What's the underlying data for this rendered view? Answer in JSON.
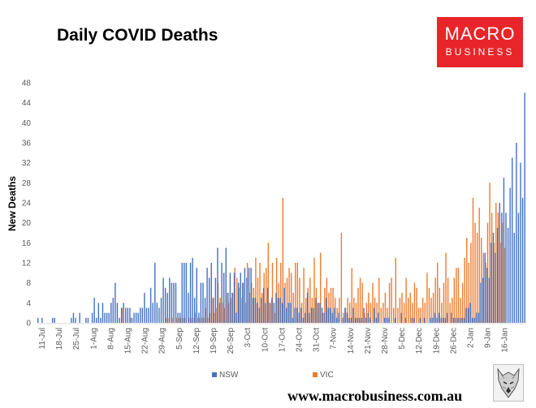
{
  "title": "Daily COVID Deaths",
  "logo": {
    "line1": "MACRO",
    "line2": "BUSINESS",
    "color": "#e8252a"
  },
  "footer": "www.macrobusiness.com.au",
  "chart_data": {
    "type": "bar",
    "title": "Daily COVID Deaths",
    "ylabel": "New Deaths",
    "ylim": [
      0,
      48
    ],
    "yticks": [
      0,
      4,
      8,
      12,
      16,
      20,
      24,
      28,
      32,
      36,
      40,
      44,
      48
    ],
    "x_tick_labels": [
      "11-Jul",
      "18-Jul",
      "25-Jul",
      "1-Aug",
      "8-Aug",
      "15-Aug",
      "22-Aug",
      "29-Aug",
      "5-Sep",
      "12-Sep",
      "19-Sep",
      "26-Sep",
      "3-Oct",
      "10-Oct",
      "17-Oct",
      "24-Oct",
      "31-Oct",
      "7-Nov",
      "14-Nov",
      "21-Nov",
      "28-Nov",
      "5-Dec",
      "12-Dec",
      "19-Dec",
      "26-Dec",
      "2-Jan",
      "9-Jan",
      "16-Jan"
    ],
    "grid": false,
    "legend_position": "bottom",
    "series": [
      {
        "name": "NSW",
        "color": "#4472c4",
        "values": [
          1,
          0,
          1,
          0,
          0,
          0,
          0,
          1,
          1,
          0,
          0,
          0,
          0,
          0,
          0,
          0,
          1,
          2,
          1,
          0,
          2,
          0,
          0,
          1,
          1,
          0,
          2,
          5,
          1,
          4,
          1,
          4,
          2,
          2,
          2,
          4,
          5,
          8,
          4,
          1,
          3,
          4,
          3,
          3,
          3,
          1,
          2,
          2,
          2,
          3,
          3,
          6,
          3,
          3,
          7,
          4,
          12,
          4,
          3,
          5,
          9,
          7,
          6,
          9,
          8,
          8,
          8,
          2,
          2,
          12,
          12,
          12,
          6,
          12,
          13,
          5,
          11,
          2,
          8,
          8,
          5,
          11,
          9,
          12,
          5,
          9,
          15,
          4,
          12,
          10,
          15,
          6,
          10,
          6,
          10,
          2,
          8,
          10,
          8,
          11,
          9,
          11,
          11,
          5,
          5,
          4,
          3,
          5,
          7,
          4,
          7,
          4,
          5,
          4,
          6,
          5,
          5,
          4,
          7,
          3,
          4,
          4,
          1,
          3,
          3,
          2,
          3,
          1,
          2,
          6,
          2,
          3,
          3,
          5,
          4,
          4,
          3,
          2,
          5,
          3,
          3,
          2,
          3,
          1,
          2,
          0,
          1,
          3,
          2,
          1,
          1,
          3,
          1,
          1,
          1,
          1,
          3,
          1,
          2,
          1,
          0,
          3,
          1,
          2,
          0,
          0,
          1,
          1,
          1,
          0,
          0,
          1,
          0,
          0,
          2,
          0,
          1,
          0,
          0,
          1,
          1,
          0,
          0,
          1,
          0,
          1,
          0,
          0,
          1,
          1,
          2,
          1,
          2,
          1,
          1,
          1,
          2,
          0,
          2,
          1,
          1,
          1,
          1,
          1,
          1,
          3,
          3,
          4,
          1,
          1,
          2,
          2,
          8,
          9,
          14,
          11,
          9,
          16,
          18,
          14,
          19,
          24,
          22,
          29,
          22,
          19,
          27,
          33,
          18,
          36,
          22,
          32,
          25,
          46
        ],
        "dim": [
          1,
          1,
          1,
          1,
          1,
          1,
          1,
          1,
          1,
          1,
          1,
          1,
          1,
          1,
          1,
          1,
          1,
          1,
          1,
          1,
          1,
          1,
          1,
          1,
          1,
          1,
          1,
          1,
          1,
          1,
          1,
          1,
          1,
          1,
          1,
          1,
          1,
          1,
          1,
          1,
          1,
          1,
          1,
          1,
          1,
          1,
          1,
          1,
          1,
          1,
          1,
          1,
          1,
          1,
          1,
          1,
          1,
          1,
          1,
          1,
          1,
          1,
          1,
          1,
          1,
          1,
          1,
          1,
          1,
          1,
          1,
          1,
          1,
          1,
          1,
          1,
          1,
          1,
          1,
          1,
          1,
          1,
          1,
          1,
          1,
          1,
          1,
          1,
          1,
          1,
          1,
          1,
          1,
          1,
          1,
          1,
          1,
          1,
          1,
          1,
          1,
          1,
          1,
          1,
          1,
          1,
          1,
          1,
          1,
          1,
          1,
          1,
          1,
          1,
          1,
          1,
          1,
          1,
          1,
          1,
          1,
          1,
          1,
          1,
          1,
          1,
          1,
          1,
          1,
          1,
          1,
          1,
          1,
          1,
          1,
          1,
          1,
          1,
          1,
          1,
          1,
          1,
          1,
          1,
          1,
          1,
          1,
          1,
          1,
          1,
          1,
          1,
          1,
          1,
          1,
          1,
          1,
          1,
          1,
          1,
          1,
          1,
          1,
          1,
          1,
          1,
          1,
          1,
          1,
          1,
          1,
          1,
          1,
          1,
          1,
          1,
          1,
          1,
          1,
          1,
          1,
          1,
          1,
          1,
          1,
          1,
          1,
          1,
          1,
          1,
          1,
          1,
          1,
          1,
          1,
          1,
          1,
          1,
          1,
          1,
          1,
          1,
          1,
          1,
          1,
          1,
          1,
          1,
          1,
          1,
          1,
          1,
          1,
          1,
          1,
          1,
          1,
          1,
          1,
          1,
          1,
          1,
          1,
          1,
          1,
          1,
          1,
          1,
          1,
          1,
          1,
          1,
          1,
          1,
          1,
          1,
          1,
          1
        ]
      },
      {
        "name": "VIC",
        "color": "#ed7d31",
        "values": [
          0,
          0,
          0,
          0,
          0,
          0,
          0,
          0,
          0,
          0,
          0,
          0,
          0,
          0,
          0,
          0,
          0,
          0,
          0,
          0,
          0,
          0,
          0,
          0,
          0,
          0,
          0,
          0,
          0,
          0,
          0,
          0,
          0,
          0,
          0,
          0,
          0,
          0,
          0,
          0,
          3,
          0,
          0,
          0,
          1,
          0,
          0,
          0,
          0,
          0,
          0,
          0,
          0,
          0,
          0,
          0,
          0,
          0,
          0,
          0,
          0,
          1,
          1,
          0,
          1,
          0,
          1,
          1,
          1,
          1,
          1,
          0,
          1,
          1,
          1,
          2,
          1,
          1,
          1,
          1,
          3,
          1,
          2,
          5,
          2,
          3,
          8,
          5,
          4,
          3,
          6,
          4,
          5,
          6,
          11,
          9,
          7,
          5,
          8,
          4,
          12,
          6,
          8,
          7,
          13,
          9,
          12,
          6,
          10,
          11,
          16,
          4,
          12,
          2,
          13,
          8,
          12,
          25,
          8,
          9,
          11,
          10,
          6,
          12,
          12,
          9,
          4,
          11,
          5,
          7,
          9,
          5,
          13,
          7,
          4,
          14,
          2,
          7,
          9,
          6,
          7,
          7,
          5,
          3,
          5,
          18,
          2,
          3,
          5,
          4,
          11,
          5,
          4,
          7,
          9,
          8,
          2,
          4,
          6,
          4,
          8,
          5,
          4,
          9,
          3,
          4,
          6,
          3,
          8,
          9,
          3,
          13,
          3,
          5,
          6,
          4,
          9,
          5,
          6,
          4,
          8,
          7,
          3,
          3,
          5,
          4,
          10,
          7,
          5,
          6,
          9,
          12,
          7,
          4,
          8,
          14,
          9,
          4,
          5,
          9,
          11,
          11,
          5,
          8,
          13,
          17,
          12,
          16,
          25,
          20,
          18,
          23,
          17,
          14,
          12,
          20,
          28,
          22,
          16,
          24,
          22,
          16,
          20,
          15
        ],
        "dim": [
          1,
          1,
          1,
          1,
          1,
          1,
          1,
          1,
          1,
          1,
          1,
          1,
          1,
          1,
          1,
          1,
          1,
          1,
          1,
          1,
          1,
          1,
          1,
          1,
          1,
          1,
          1,
          1,
          1,
          1,
          1,
          1,
          1,
          1,
          1,
          1,
          1,
          1,
          1,
          1,
          1,
          1,
          1,
          1,
          1,
          1,
          1,
          1,
          1,
          1,
          1,
          1,
          1,
          1,
          1,
          1,
          1,
          1,
          1,
          1,
          1,
          1,
          1,
          1,
          1,
          1,
          1,
          1,
          1,
          1,
          1,
          1,
          1,
          1,
          1,
          1,
          1,
          1,
          1,
          1,
          1,
          1,
          1,
          1,
          1,
          1,
          1,
          1,
          1,
          1,
          1,
          1,
          1,
          1,
          1,
          1,
          1,
          1,
          1,
          1,
          1,
          1,
          1,
          1,
          1,
          1,
          1,
          1,
          1,
          1,
          1,
          1,
          1,
          1,
          1,
          1,
          1,
          1,
          1,
          1,
          1,
          1,
          1,
          1,
          1,
          1,
          1,
          1,
          1,
          1,
          1,
          1,
          1,
          1,
          1,
          1,
          1,
          1,
          1,
          1,
          1,
          1,
          1,
          1,
          1,
          1,
          1,
          1,
          1,
          1,
          1,
          1,
          1,
          1,
          1,
          1,
          1,
          1,
          1,
          1,
          1,
          1,
          1,
          1,
          1,
          1,
          1,
          1,
          1,
          1,
          1,
          1,
          1,
          1,
          1,
          1,
          1,
          1,
          1,
          1,
          1,
          1,
          1,
          1,
          1,
          1,
          1,
          1,
          1,
          1,
          1,
          1,
          1,
          1,
          1,
          1,
          1,
          1,
          1,
          1,
          1,
          1,
          1,
          1,
          1,
          1,
          1,
          1,
          1,
          1,
          1,
          1,
          1,
          1,
          1,
          1,
          1,
          1,
          1,
          1,
          1,
          1,
          1,
          1,
          1,
          1,
          1,
          1,
          1,
          1,
          1,
          1,
          1,
          1,
          1,
          1,
          1,
          1
        ]
      }
    ]
  }
}
